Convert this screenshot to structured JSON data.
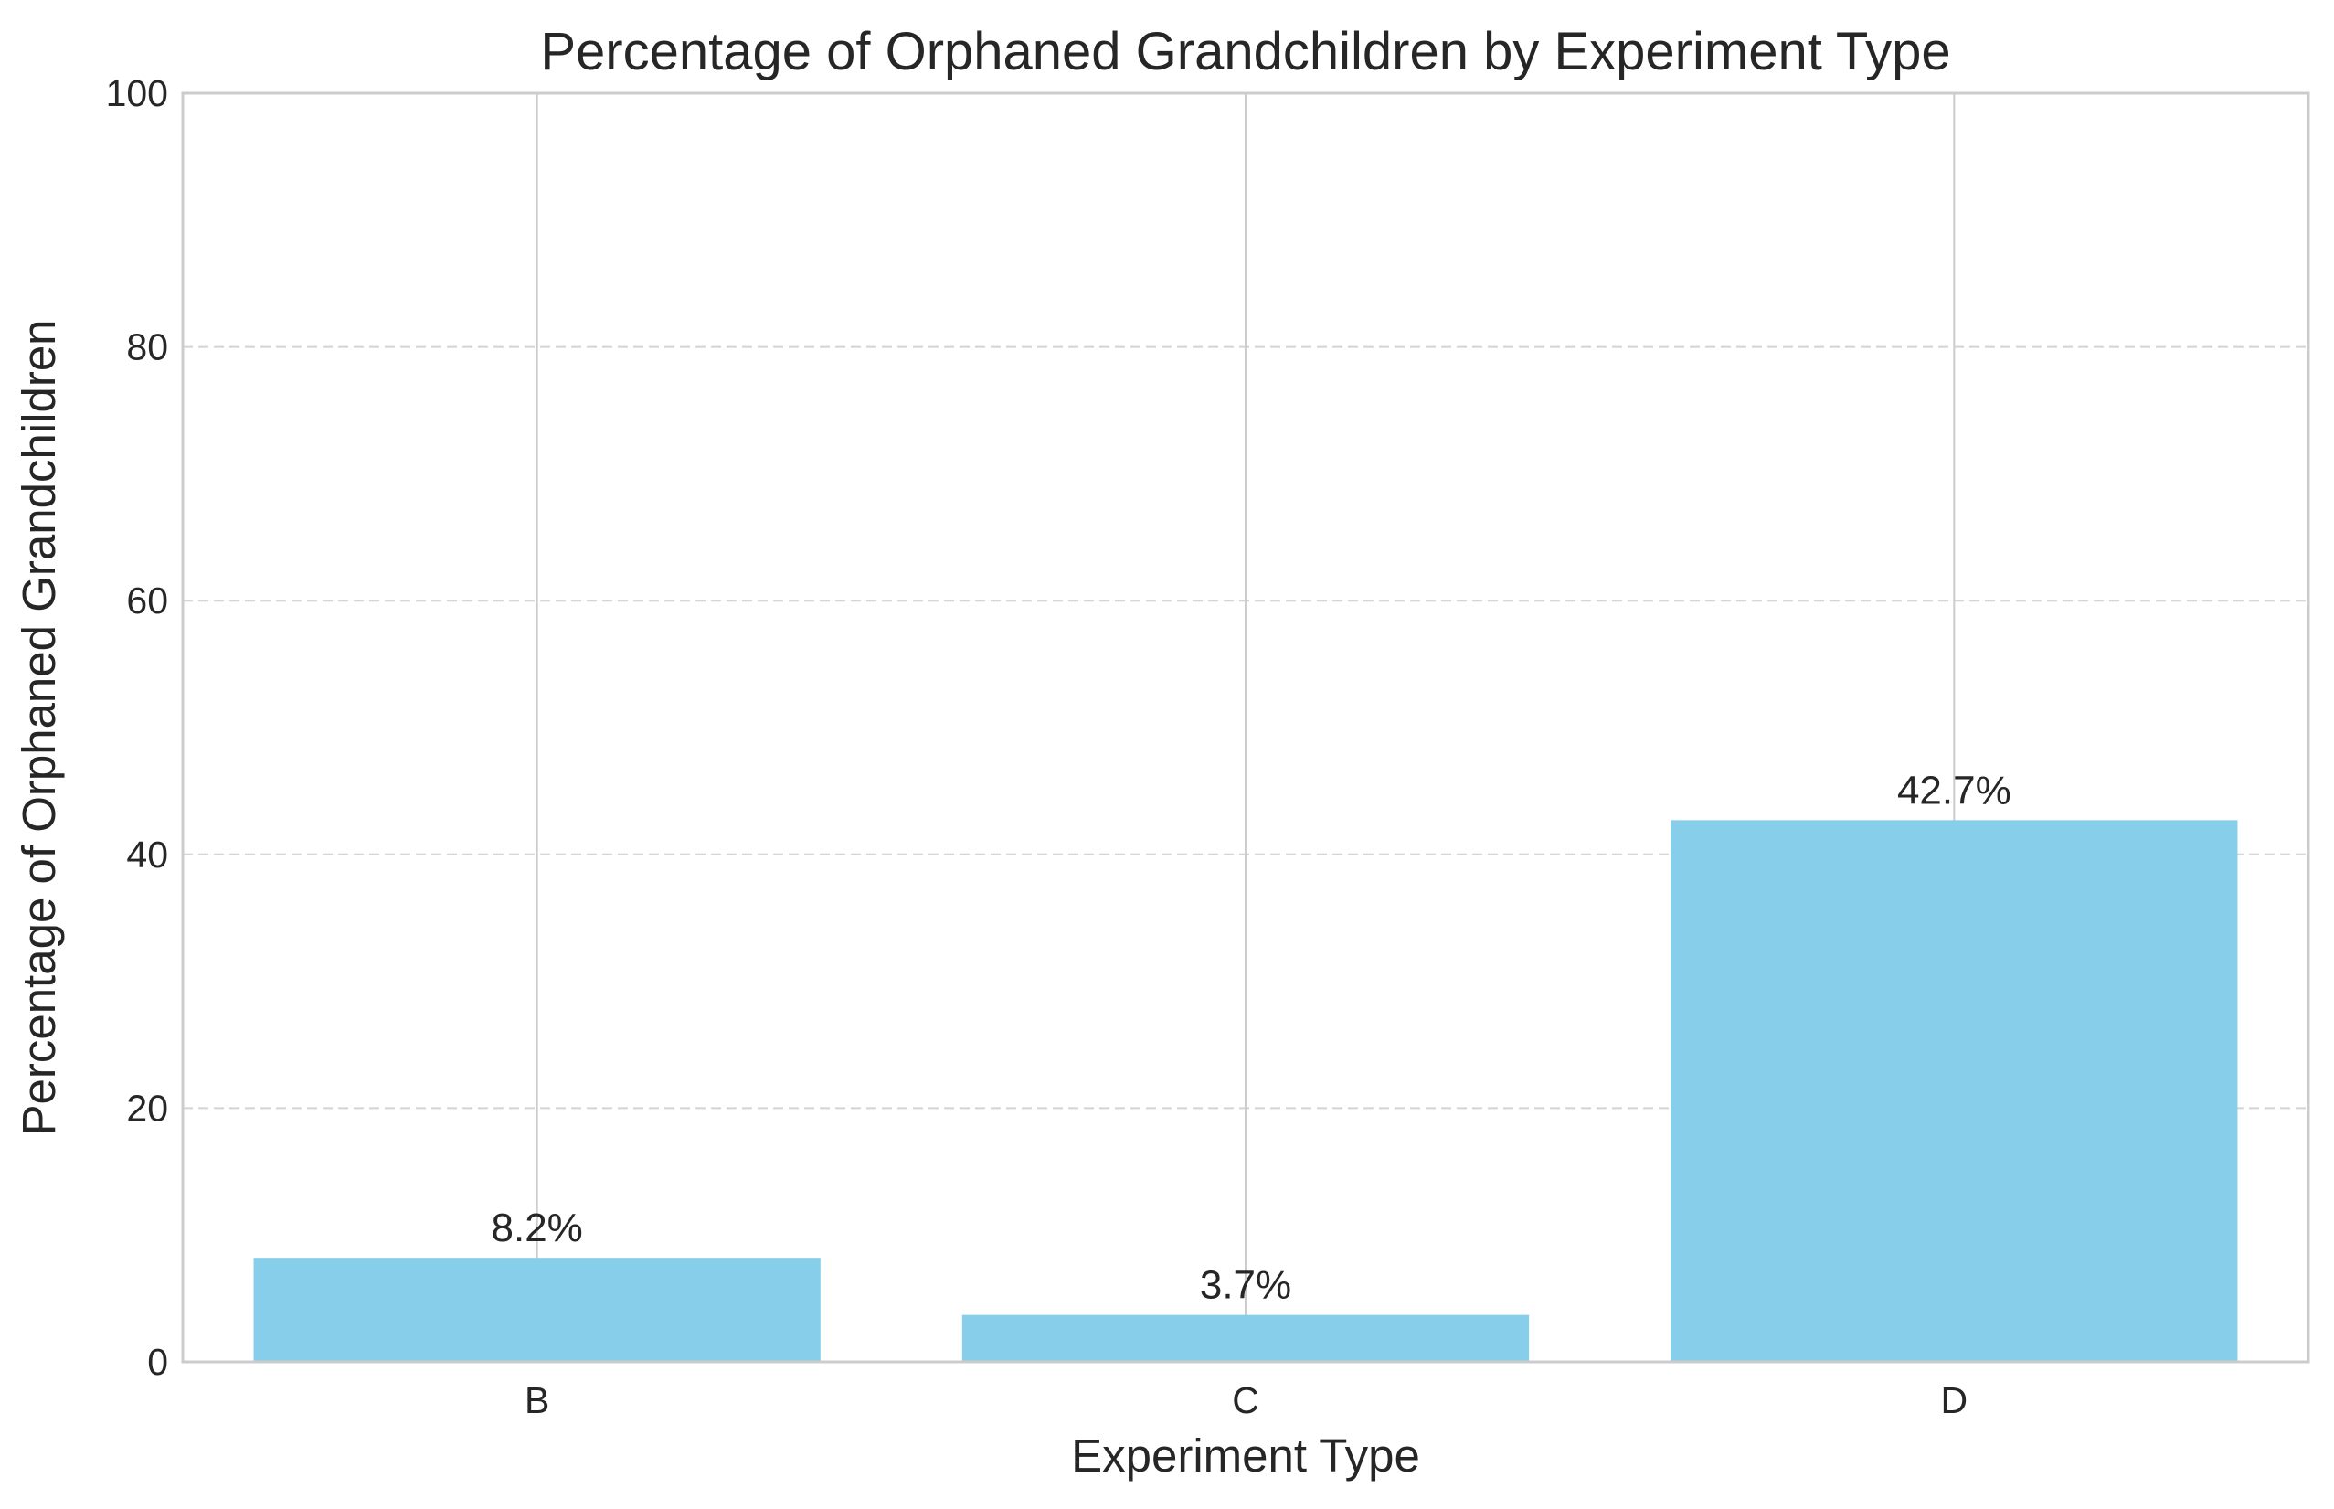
{
  "chart_data": {
    "type": "bar",
    "title": "Percentage of Orphaned Grandchildren by Experiment Type",
    "xlabel": "Experiment Type",
    "ylabel": "Percentage of Orphaned Grandchildren",
    "categories": [
      "B",
      "C",
      "D"
    ],
    "values": [
      8.2,
      3.7,
      42.7
    ],
    "data_labels": [
      "8.2%",
      "3.7%",
      "42.7%"
    ],
    "ylim": [
      0,
      100
    ],
    "yticks": [
      0,
      20,
      40,
      60,
      80,
      100
    ],
    "ytick_labels": [
      "0",
      "20",
      "40",
      "60",
      "80",
      "100"
    ],
    "bar_color": "#87ceeb",
    "grid": true,
    "grid_style": "dashed horizontal, solid vertical"
  }
}
